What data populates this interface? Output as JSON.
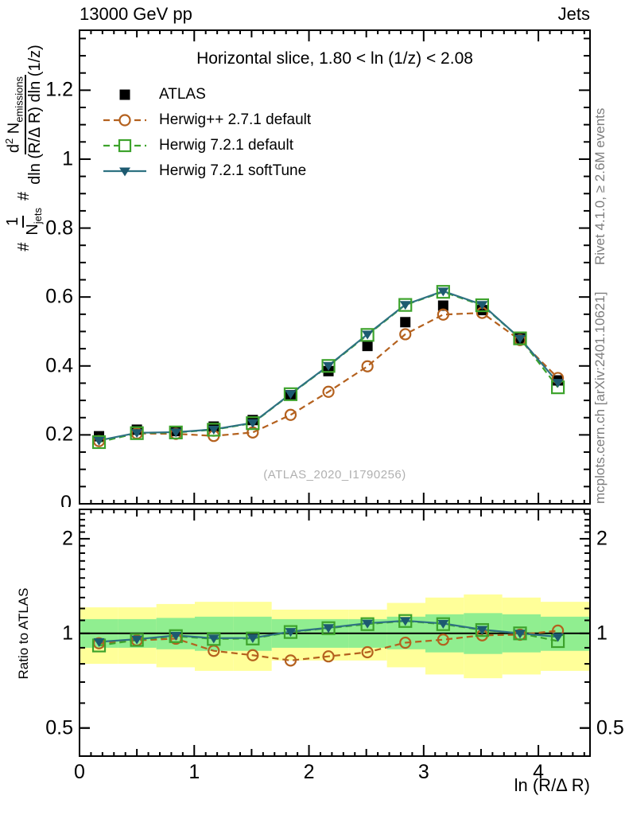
{
  "header": {
    "left": "13000 GeV pp",
    "right": "Jets"
  },
  "panel_title": "Horizontal slice, 1.80 < ln (1/z) < 2.08",
  "watermark": "(ATLAS_2020_I1790256)",
  "side_notes": {
    "top": "Rivet 4.1.0, ≥ 2.6M events",
    "bottom": "mcplots.cern.ch [arXiv:2401.10621]"
  },
  "chart_data": {
    "type": "line",
    "title": "Horizontal slice, 1.80 < ln (1/z) < 2.08",
    "xlabel": "ln (R/Δ R)",
    "ylabel": {
      "hash1": "#",
      "num1": "1",
      "den1_main": "N",
      "den1_sub": "jets",
      "hash2": "#",
      "num2_d": "d",
      "num2_sup": "2",
      "num2_N": " N",
      "num2_sub": "emissions",
      "den2": "dln (R/Δ R) dln (1/z)"
    },
    "x": [
      0.17,
      0.5,
      0.84,
      1.17,
      1.51,
      1.84,
      2.17,
      2.51,
      2.84,
      3.17,
      3.51,
      3.84,
      4.17
    ],
    "series": [
      {
        "name": "ATLAS",
        "color": "#000000",
        "marker": "square_filled",
        "line": "none",
        "values": [
          0.196,
          0.215,
          0.211,
          0.224,
          0.243,
          0.315,
          0.385,
          0.458,
          0.527,
          0.575,
          0.562,
          0.48,
          0.358
        ]
      },
      {
        "name": "Herwig++ 2.7.1 default",
        "color": "#b4611e",
        "marker": "circle_open",
        "line": "dashed",
        "values": [
          0.182,
          0.204,
          0.203,
          0.197,
          0.207,
          0.258,
          0.325,
          0.399,
          0.492,
          0.549,
          0.554,
          0.475,
          0.365
        ],
        "ratio": [
          0.93,
          0.95,
          0.962,
          0.88,
          0.852,
          0.82,
          0.845,
          0.871,
          0.934,
          0.955,
          0.986,
          0.99,
          1.02
        ]
      },
      {
        "name": "Herwig 7.2.1 default",
        "color": "#3da32c",
        "marker": "square_open",
        "line": "dashed",
        "values": [
          0.179,
          0.205,
          0.207,
          0.215,
          0.234,
          0.318,
          0.4,
          0.49,
          0.577,
          0.615,
          0.576,
          0.48,
          0.338
        ],
        "ratio": [
          0.915,
          0.953,
          0.98,
          0.96,
          0.963,
          1.01,
          1.039,
          1.07,
          1.095,
          1.07,
          1.025,
          1.0,
          0.945
        ]
      },
      {
        "name": "Herwig 7.2.1 softTune",
        "color": "#2e7282",
        "marker_color": "#1d5a70",
        "marker": "triangle_down_filled",
        "line": "solid",
        "values": [
          0.184,
          0.206,
          0.208,
          0.216,
          0.235,
          0.319,
          0.401,
          0.492,
          0.578,
          0.617,
          0.578,
          0.48,
          0.352
        ],
        "ratio": [
          0.94,
          0.958,
          0.985,
          0.965,
          0.967,
          1.013,
          1.042,
          1.077,
          1.097,
          1.075,
          1.028,
          1.0,
          0.975
        ]
      }
    ],
    "main_axis": {
      "ylim": [
        0,
        1.374
      ],
      "yticks": [
        "0.2",
        "0.4",
        "0.6",
        "0.8",
        "1",
        "1.2"
      ],
      "minor_step": 0.05,
      "zero_label": "0"
    },
    "x_axis": {
      "xlim": [
        0,
        4.45
      ],
      "xticks": [
        "0",
        "1",
        "2",
        "3",
        "4"
      ],
      "minor_step": 0.1
    },
    "ratio_axis": {
      "label": "Ratio to ATLAS",
      "ylim": [
        0.407,
        2.48
      ],
      "yticks": [
        "0.5",
        "1",
        "2"
      ],
      "minor_ticks": [
        0.5,
        0.6,
        0.7,
        0.8,
        0.9,
        1.1,
        1.2,
        1.3,
        1.4,
        1.5,
        1.6,
        1.7,
        1.8,
        1.9,
        2.1,
        2.2,
        2.3,
        2.4
      ]
    },
    "bands": {
      "edges": [
        0,
        0.335,
        0.67,
        1.005,
        1.34,
        1.675,
        2.01,
        2.345,
        2.68,
        3.015,
        3.35,
        3.685,
        4.02,
        4.45
      ],
      "yellow": [
        [
          0.8,
          1.21
        ],
        [
          0.8,
          1.21
        ],
        [
          0.78,
          1.24
        ],
        [
          0.76,
          1.26
        ],
        [
          0.76,
          1.26
        ],
        [
          0.82,
          1.19
        ],
        [
          0.82,
          1.19
        ],
        [
          0.82,
          1.19
        ],
        [
          0.78,
          1.25
        ],
        [
          0.74,
          1.3
        ],
        [
          0.72,
          1.33
        ],
        [
          0.74,
          1.3
        ],
        [
          0.76,
          1.26
        ]
      ],
      "green": [
        [
          0.9,
          1.11
        ],
        [
          0.9,
          1.11
        ],
        [
          0.89,
          1.12
        ],
        [
          0.88,
          1.13
        ],
        [
          0.88,
          1.13
        ],
        [
          0.9,
          1.11
        ],
        [
          0.9,
          1.11
        ],
        [
          0.9,
          1.11
        ],
        [
          0.89,
          1.13
        ],
        [
          0.87,
          1.15
        ],
        [
          0.86,
          1.16
        ],
        [
          0.87,
          1.15
        ],
        [
          0.88,
          1.13
        ]
      ],
      "yellow_color": "#ffff99",
      "green_color": "#90ee90"
    }
  }
}
